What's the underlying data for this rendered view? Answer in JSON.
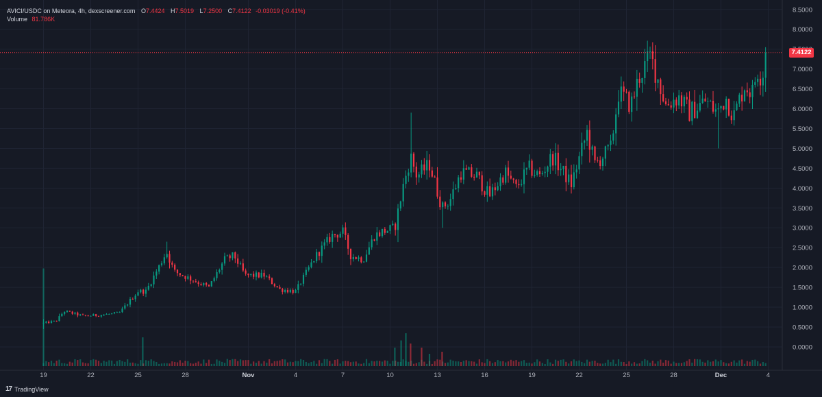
{
  "legend": {
    "symbol": "AVICI/USDC on Meteora, 4h, dexscreener.com",
    "open_label": "O",
    "open": "7.4424",
    "high_label": "H",
    "high": "7.5019",
    "low_label": "L",
    "low": "7.2500",
    "close_label": "C",
    "close": "7.4122",
    "change": "-0.03019 (-0.41%)",
    "volume_label": "Volume",
    "volume": "81.786K"
  },
  "last_price_tag": "7.4122",
  "brand": {
    "name": "TradingView",
    "icon": "tradingview-logo-icon"
  },
  "colors": {
    "up": "#089981",
    "down": "#f23645",
    "background": "#161a25",
    "grid": "#1f2433",
    "text": "#b2b5be"
  },
  "chart_data": {
    "type": "candlestick",
    "title": "AVICI/USDC on Meteora, 4h, dexscreener.com",
    "interval": "4h",
    "y_ticks": [
      "0.0000",
      "0.5000",
      "1.0000",
      "1.5000",
      "2.0000",
      "2.5000",
      "3.0000",
      "3.5000",
      "4.0000",
      "4.5000",
      "5.0000",
      "5.5000",
      "6.0000",
      "6.5000",
      "7.0000",
      "7.5000",
      "8.0000",
      "8.5000"
    ],
    "ylim": [
      -0.45,
      8.6
    ],
    "x_ticks": [
      {
        "label": "19",
        "day": 0,
        "bold": false
      },
      {
        "label": "22",
        "day": 3,
        "bold": false
      },
      {
        "label": "25",
        "day": 6,
        "bold": false
      },
      {
        "label": "28",
        "day": 9,
        "bold": false
      },
      {
        "label": "Nov",
        "day": 13,
        "bold": true
      },
      {
        "label": "4",
        "day": 16,
        "bold": false
      },
      {
        "label": "7",
        "day": 19,
        "bold": false
      },
      {
        "label": "10",
        "day": 22,
        "bold": false
      },
      {
        "label": "13",
        "day": 25,
        "bold": false
      },
      {
        "label": "16",
        "day": 28,
        "bold": false
      },
      {
        "label": "19",
        "day": 31,
        "bold": false
      },
      {
        "label": "22",
        "day": 34,
        "bold": false
      },
      {
        "label": "25",
        "day": 37,
        "bold": false
      },
      {
        "label": "28",
        "day": 40,
        "bold": false
      },
      {
        "label": "Dec",
        "day": 43,
        "bold": true
      },
      {
        "label": "4",
        "day": 46,
        "bold": false
      }
    ],
    "last_close": 7.4122,
    "legend_position": "top-left",
    "grid": true,
    "volume_scale_max": 1.0,
    "anchors": [
      {
        "d": 0.0,
        "c": 0.6
      },
      {
        "d": 0.8,
        "c": 0.65
      },
      {
        "d": 1.3,
        "c": 0.9
      },
      {
        "d": 2.5,
        "c": 0.78
      },
      {
        "d": 3.5,
        "c": 0.8
      },
      {
        "d": 4.8,
        "c": 0.85
      },
      {
        "d": 6.0,
        "c": 1.4
      },
      {
        "d": 6.5,
        "c": 1.4
      },
      {
        "d": 7.3,
        "c": 2.0
      },
      {
        "d": 7.8,
        "c": 2.4
      },
      {
        "d": 8.3,
        "c": 1.9
      },
      {
        "d": 10.5,
        "c": 1.5
      },
      {
        "d": 11.5,
        "c": 2.2
      },
      {
        "d": 12.1,
        "c": 2.3
      },
      {
        "d": 12.8,
        "c": 1.8
      },
      {
        "d": 14.0,
        "c": 1.8
      },
      {
        "d": 15.0,
        "c": 1.45
      },
      {
        "d": 16.0,
        "c": 1.4
      },
      {
        "d": 17.3,
        "c": 2.3
      },
      {
        "d": 18.3,
        "c": 2.8
      },
      {
        "d": 19.0,
        "c": 2.9
      },
      {
        "d": 19.5,
        "c": 2.3
      },
      {
        "d": 20.3,
        "c": 2.2
      },
      {
        "d": 21.0,
        "c": 2.8
      },
      {
        "d": 21.5,
        "c": 2.9
      },
      {
        "d": 22.3,
        "c": 3.0
      },
      {
        "d": 22.8,
        "c": 4.0
      },
      {
        "d": 23.3,
        "c": 4.8
      },
      {
        "d": 23.7,
        "c": 4.3
      },
      {
        "d": 24.5,
        "c": 4.6
      },
      {
        "d": 25.3,
        "c": 3.5
      },
      {
        "d": 25.8,
        "c": 3.7
      },
      {
        "d": 26.5,
        "c": 4.4
      },
      {
        "d": 27.5,
        "c": 4.3
      },
      {
        "d": 28.3,
        "c": 3.8
      },
      {
        "d": 29.3,
        "c": 4.4
      },
      {
        "d": 30.0,
        "c": 4.0
      },
      {
        "d": 30.8,
        "c": 4.5
      },
      {
        "d": 31.5,
        "c": 4.3
      },
      {
        "d": 32.3,
        "c": 4.8
      },
      {
        "d": 33.5,
        "c": 4.1
      },
      {
        "d": 34.5,
        "c": 5.4
      },
      {
        "d": 35.0,
        "c": 4.6
      },
      {
        "d": 36.0,
        "c": 5.0
      },
      {
        "d": 36.5,
        "c": 6.4
      },
      {
        "d": 37.3,
        "c": 6.1
      },
      {
        "d": 37.8,
        "c": 6.8
      },
      {
        "d": 38.5,
        "c": 7.3
      },
      {
        "d": 38.8,
        "c": 7.0
      },
      {
        "d": 39.5,
        "c": 6.1
      },
      {
        "d": 40.3,
        "c": 6.3
      },
      {
        "d": 41.0,
        "c": 5.9
      },
      {
        "d": 42.0,
        "c": 6.2
      },
      {
        "d": 42.8,
        "c": 5.9
      },
      {
        "d": 43.3,
        "c": 6.3
      },
      {
        "d": 43.8,
        "c": 5.8
      },
      {
        "d": 44.5,
        "c": 6.6
      },
      {
        "d": 45.0,
        "c": 6.4
      },
      {
        "d": 45.3,
        "c": 7.0
      },
      {
        "d": 45.6,
        "c": 6.8
      },
      {
        "d": 45.9,
        "c": 7.4
      }
    ],
    "volume_spikes": [
      {
        "d": 0.0,
        "v": 0.95,
        "up": true
      },
      {
        "d": 6.3,
        "v": 0.28,
        "up": true
      },
      {
        "d": 22.3,
        "v": 0.18,
        "up": true
      },
      {
        "d": 22.7,
        "v": 0.25,
        "up": true
      },
      {
        "d": 23.0,
        "v": 0.32,
        "up": true
      },
      {
        "d": 23.3,
        "v": 0.22,
        "up": false
      },
      {
        "d": 24.0,
        "v": 0.18,
        "up": false
      },
      {
        "d": 24.5,
        "v": 0.12,
        "up": true
      },
      {
        "d": 25.3,
        "v": 0.14,
        "up": false
      }
    ]
  }
}
